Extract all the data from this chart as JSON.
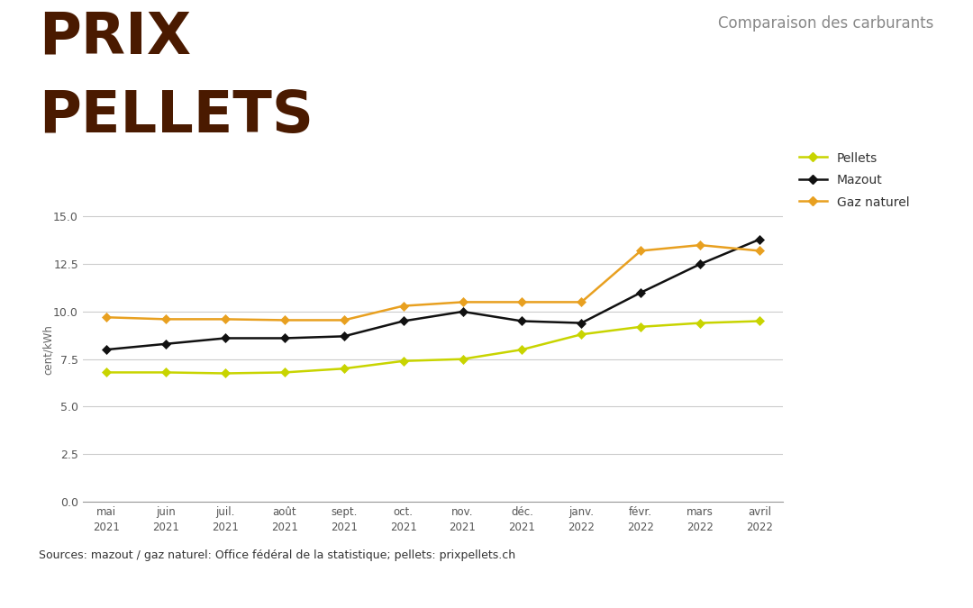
{
  "title_line1": "PRIX",
  "title_line2": "PELLETS",
  "subtitle": "Comparaison des carburants",
  "title_color": "#4a1a00",
  "subtitle_color": "#888888",
  "ylabel": "cent/kWh",
  "source_text": "Sources: mazout / gaz naturel: Office fédéral de la statistique; pellets: prixpellets.ch",
  "x_labels": [
    "mai\n2021",
    "juin\n2021",
    "juil.\n2021",
    "août\n2021",
    "sept.\n2021",
    "oct.\n2021",
    "nov.\n2021",
    "déc.\n2021",
    "janv.\n2022",
    "févr.\n2022",
    "mars\n2022",
    "avril\n2022"
  ],
  "pellets": [
    6.8,
    6.8,
    6.75,
    6.8,
    7.0,
    7.4,
    7.5,
    8.0,
    8.8,
    9.2,
    9.4,
    9.5
  ],
  "mazout": [
    8.0,
    8.3,
    8.6,
    8.6,
    8.7,
    9.5,
    10.0,
    9.5,
    9.4,
    11.0,
    12.5,
    13.8
  ],
  "gaz_naturel": [
    9.7,
    9.6,
    9.6,
    9.55,
    9.55,
    10.3,
    10.5,
    10.5,
    10.5,
    13.2,
    13.5,
    13.2
  ],
  "pellets_color": "#c8d400",
  "mazout_color": "#111111",
  "gaz_color": "#e8a020",
  "ylim": [
    0,
    16
  ],
  "yticks": [
    0.0,
    2.5,
    5.0,
    7.5,
    10.0,
    12.5,
    15.0
  ],
  "background_color": "#ffffff",
  "footer_bg": "#ebebeb",
  "grid_color": "#cccccc",
  "marker_size": 5,
  "line_width": 1.8
}
